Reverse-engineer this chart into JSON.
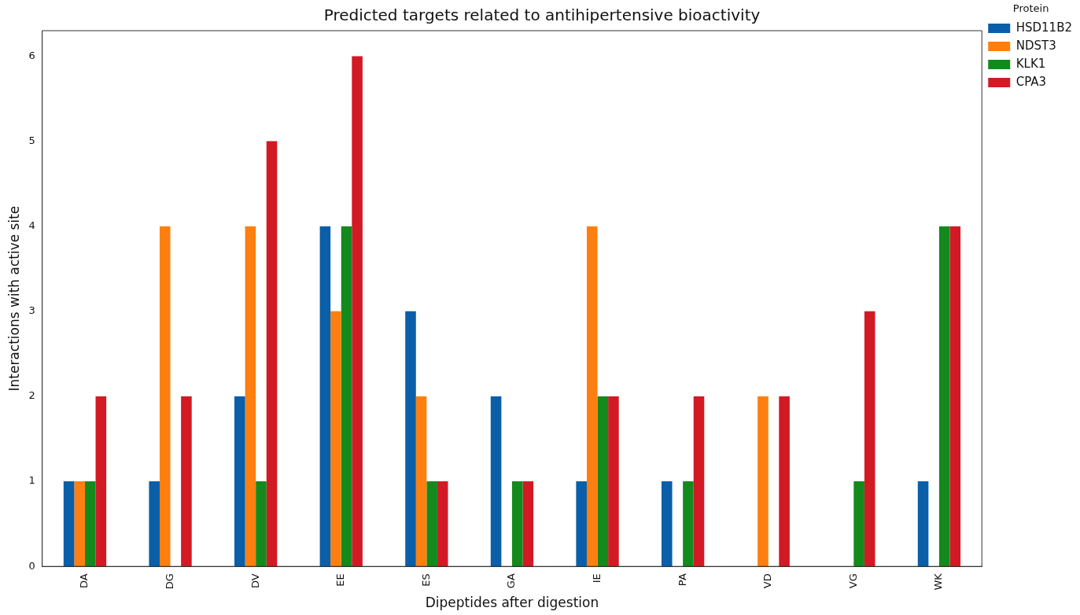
{
  "chart_data": {
    "type": "bar",
    "title": "Predicted targets related to antihipertensive bioactivity",
    "xlabel": "Dipeptides after digestion",
    "ylabel": "Interactions with active site",
    "legend_title": "Protein",
    "categories": [
      "DA",
      "DG",
      "DV",
      "EE",
      "ES",
      "GA",
      "IE",
      "PA",
      "VD",
      "VG",
      "WK"
    ],
    "series": [
      {
        "name": "HSD11B2",
        "color": "#0b5ea8",
        "values": [
          1,
          1,
          2,
          4,
          3,
          2,
          1,
          1,
          0,
          0,
          1
        ]
      },
      {
        "name": "NDST3",
        "color": "#fd7f0f",
        "values": [
          1,
          4,
          4,
          3,
          2,
          0,
          4,
          0,
          2,
          0,
          0
        ]
      },
      {
        "name": "KLK1",
        "color": "#14891c",
        "values": [
          1,
          0,
          1,
          4,
          1,
          1,
          2,
          1,
          0,
          1,
          4
        ]
      },
      {
        "name": "CPA3",
        "color": "#d21a25",
        "values": [
          2,
          2,
          5,
          6,
          1,
          1,
          2,
          2,
          2,
          3,
          4
        ]
      }
    ],
    "ylim": [
      0,
      6.3
    ],
    "yticks": [
      0,
      1,
      2,
      3,
      4,
      5,
      6
    ],
    "grid": false,
    "legend": "top right"
  }
}
